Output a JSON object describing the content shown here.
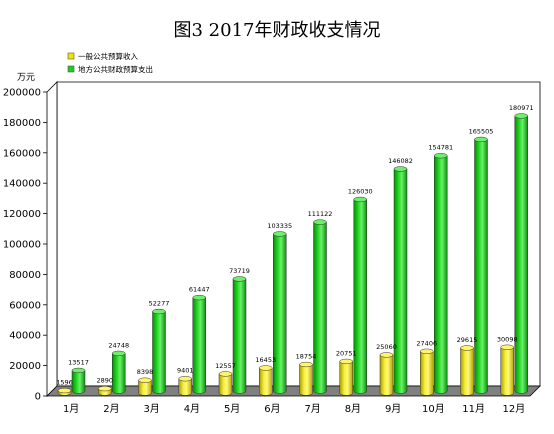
{
  "chart_data": {
    "type": "bar",
    "title": "图3 2017年财政收支情况",
    "ylabel": "万元",
    "xlabel": "",
    "categories": [
      "1月",
      "2月",
      "3月",
      "4月",
      "5月",
      "6月",
      "7月",
      "8月",
      "9月",
      "10月",
      "11月",
      "12月"
    ],
    "ylim": [
      0,
      200000
    ],
    "yticks": [
      0,
      20000,
      40000,
      60000,
      80000,
      100000,
      120000,
      140000,
      160000,
      180000,
      200000
    ],
    "ytick_labels": [
      "0",
      "20000",
      "40000",
      "60000",
      "80000",
      "100000",
      "120000",
      "140000",
      "160000",
      "180000",
      "200000"
    ],
    "grid": false,
    "legend_position": "top-left",
    "series": [
      {
        "name": "一般公共预算收入",
        "color": "#f2e600",
        "values": [
          1596,
          2890,
          8398,
          9401,
          12557,
          16453,
          18754,
          20751,
          25060,
          27406,
          29615,
          30098
        ],
        "labels": [
          "1596",
          "2890",
          "8398",
          "9401",
          "12557",
          "16453",
          "18754",
          "20751",
          "25060",
          "27406",
          "29615",
          "30098"
        ]
      },
      {
        "name": "地方公共财政预算支出",
        "color": "#1ecc1e",
        "values": [
          13517,
          24748,
          52277,
          61447,
          73719,
          103335,
          111122,
          126030,
          146082,
          154781,
          165505,
          180971
        ],
        "labels": [
          "13517",
          "24748",
          "52277",
          "61447",
          "73719",
          "103335",
          "111122",
          "126030",
          "146082",
          "154781",
          "165505",
          "180971"
        ]
      }
    ]
  }
}
